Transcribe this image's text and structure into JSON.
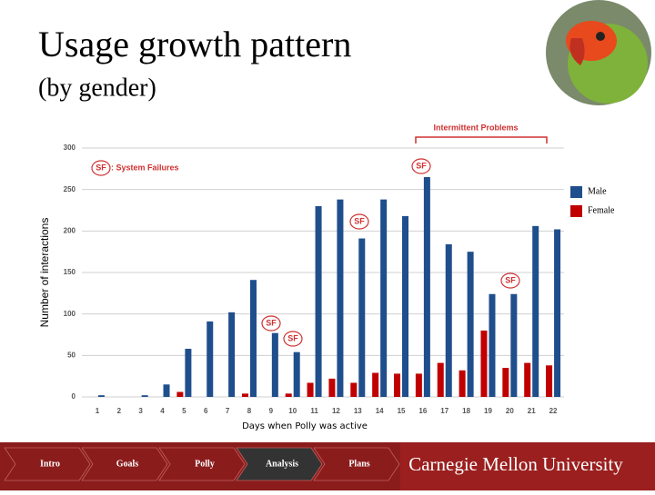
{
  "header": {
    "title": "Usage growth pattern",
    "subtitle": "(by gender)"
  },
  "chart_data": {
    "type": "bar",
    "y_label": "Number of interactions",
    "x_label": "Days when Polly was active",
    "categories": [
      "1",
      "2",
      "3",
      "4",
      "5",
      "6",
      "7",
      "8",
      "9",
      "10",
      "11",
      "12",
      "13",
      "14",
      "15",
      "16",
      "17",
      "18",
      "19",
      "20",
      "21",
      "22"
    ],
    "series": [
      {
        "name": "Male",
        "color": "#1f4e8c",
        "values": [
          2,
          0,
          2,
          15,
          58,
          91,
          102,
          141,
          77,
          54,
          230,
          238,
          191,
          238,
          218,
          265,
          184,
          175,
          124,
          124,
          206,
          202
        ]
      },
      {
        "name": "Female",
        "color": "#c00000",
        "values": [
          0,
          0,
          0,
          0,
          6,
          0,
          0,
          4,
          0,
          4,
          17,
          22,
          17,
          29,
          28,
          28,
          41,
          32,
          80,
          35,
          41,
          38
        ]
      }
    ],
    "ylim": [
      0,
      300
    ],
    "yticks": [
      0,
      50,
      100,
      150,
      200,
      250,
      300
    ],
    "grid": true,
    "legend": "right",
    "sf_key": {
      "marker": "SF",
      "text": ": System Failures"
    },
    "sf_markers": [
      "SF",
      "SF",
      "SF",
      "SF",
      "SF"
    ],
    "bracket_label": "Intermittent Problems"
  },
  "nav": {
    "tabs": [
      "Intro",
      "Goals",
      "Polly",
      "Analysis",
      "Plans"
    ],
    "university": "Carnegie Mellon University"
  }
}
